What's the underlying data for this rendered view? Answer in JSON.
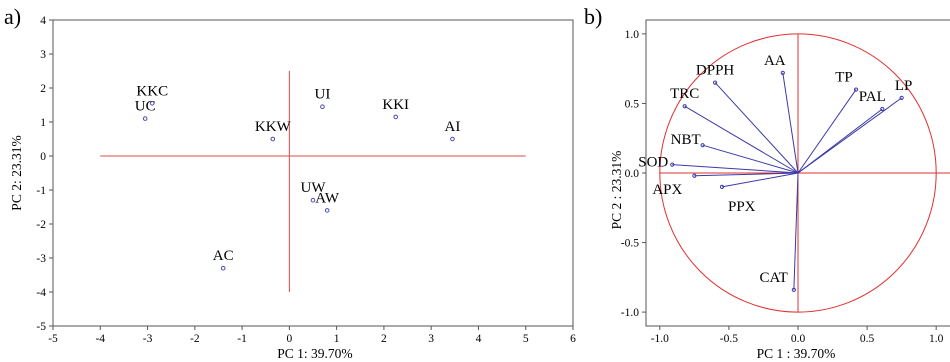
{
  "chart_data": [
    {
      "panel_label": "a)",
      "type": "scatter",
      "xlabel": "PC 1: 39.70%",
      "ylabel": "PC 2: 23.31%",
      "xlim": [
        -5,
        6
      ],
      "ylim": [
        -5,
        4
      ],
      "xticks": [
        "-5",
        "-4",
        "-3",
        "-2",
        "-1",
        "0",
        "1",
        "2",
        "3",
        "4",
        "5",
        "6"
      ],
      "yticks": [
        "-5",
        "-4",
        "-3",
        "-2",
        "-1",
        "0",
        "1",
        "2",
        "3",
        "4"
      ],
      "grid": false,
      "reference_lines": {
        "h": {
          "y": 0,
          "x_from": -4,
          "x_to": 5
        },
        "v": {
          "x": 0,
          "y_from": -4,
          "y_to": 2.5
        }
      },
      "points": [
        {
          "label": "UC",
          "x": -3.05,
          "y": 1.1
        },
        {
          "label": "KKC",
          "x": -2.9,
          "y": 1.55
        },
        {
          "label": "KKW",
          "x": -0.35,
          "y": 0.5
        },
        {
          "label": "UI",
          "x": 0.7,
          "y": 1.45
        },
        {
          "label": "KKI",
          "x": 2.25,
          "y": 1.15
        },
        {
          "label": "AI",
          "x": 3.45,
          "y": 0.5
        },
        {
          "label": "UW",
          "x": 0.5,
          "y": -1.3
        },
        {
          "label": "AW",
          "x": 0.8,
          "y": -1.6
        },
        {
          "label": "AC",
          "x": -1.4,
          "y": -3.3
        }
      ],
      "colors": {
        "marker": "#4a4ab8",
        "reference_line": "#d94a4a",
        "frame": "#555555"
      }
    },
    {
      "panel_label": "b)",
      "type": "scatter",
      "xlabel": "PC 1 : 39.70%",
      "ylabel": "PC 2 : 23.31%",
      "xlim": [
        -1.1,
        1.1
      ],
      "ylim": [
        -1.1,
        1.1
      ],
      "xticks": [
        "-1.0",
        "-0.5",
        "0.0",
        "0.5",
        "1.0"
      ],
      "yticks": [
        "-1.0",
        "-0.5",
        "0.0",
        "0.5",
        "1.0"
      ],
      "grid": false,
      "unit_circle": true,
      "vectors": [
        {
          "label": "AA",
          "x": -0.11,
          "y": 0.72
        },
        {
          "label": "DPPH",
          "x": -0.6,
          "y": 0.65
        },
        {
          "label": "TRC",
          "x": -0.82,
          "y": 0.48
        },
        {
          "label": "TP",
          "x": 0.42,
          "y": 0.6
        },
        {
          "label": "LP",
          "x": 0.75,
          "y": 0.54
        },
        {
          "label": "PAL",
          "x": 0.61,
          "y": 0.46
        },
        {
          "label": "NBT",
          "x": -0.69,
          "y": 0.2
        },
        {
          "label": "SOD",
          "x": -0.91,
          "y": 0.06
        },
        {
          "label": "APX",
          "x": -0.75,
          "y": -0.02
        },
        {
          "label": "PPX",
          "x": -0.55,
          "y": -0.1
        },
        {
          "label": "CAT",
          "x": -0.03,
          "y": -0.84
        }
      ],
      "colors": {
        "vector": "#3a3aa8",
        "circle": "#e03030",
        "reference_line": "#e03030",
        "frame": "#555555"
      }
    }
  ]
}
